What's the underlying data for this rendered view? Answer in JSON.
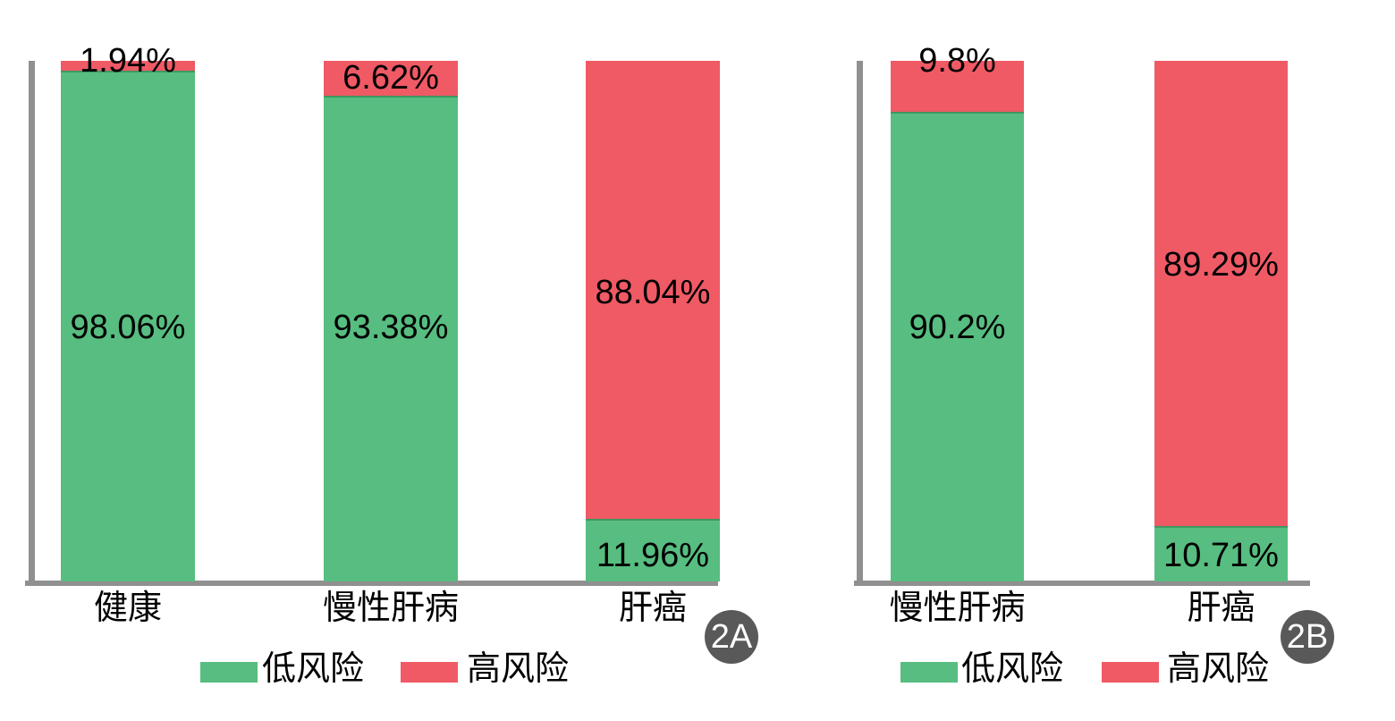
{
  "figure": {
    "background": "#ffffff",
    "axis_color": "#909090",
    "badge_bg": "#595959",
    "badge_text_color": "#ffffff",
    "label_text_color": "#000000"
  },
  "chart_data": [
    {
      "type": "bar",
      "subtype": "stacked-percentage",
      "badge": "2A",
      "title": "",
      "xlabel": "",
      "ylabel": "",
      "ylim": [
        0,
        100
      ],
      "unit": "%",
      "grid": false,
      "legend_position": "bottom",
      "categories": [
        "健康",
        "慢性肝病",
        "肝癌"
      ],
      "series": [
        {
          "name": "低风险",
          "color": "#57BD80",
          "values": [
            98.06,
            93.38,
            11.96
          ],
          "labels": [
            "98.06%",
            "93.38%",
            "11.96%"
          ]
        },
        {
          "name": "高风险",
          "color": "#EF5A65",
          "values": [
            1.94,
            6.62,
            88.04
          ],
          "labels": [
            "1.94%",
            "6.62%",
            "88.04%"
          ]
        }
      ]
    },
    {
      "type": "bar",
      "subtype": "stacked-percentage",
      "badge": "2B",
      "title": "",
      "xlabel": "",
      "ylabel": "",
      "ylim": [
        0,
        100
      ],
      "unit": "%",
      "grid": false,
      "legend_position": "bottom",
      "categories": [
        "慢性肝病",
        "肝癌"
      ],
      "series": [
        {
          "name": "低风险",
          "color": "#57BD80",
          "values": [
            90.2,
            10.71
          ],
          "labels": [
            "90.2%",
            "10.71%"
          ]
        },
        {
          "name": "高风险",
          "color": "#EF5A65",
          "values": [
            9.8,
            89.29
          ],
          "labels": [
            "9.8%",
            "89.29%"
          ]
        }
      ]
    }
  ]
}
